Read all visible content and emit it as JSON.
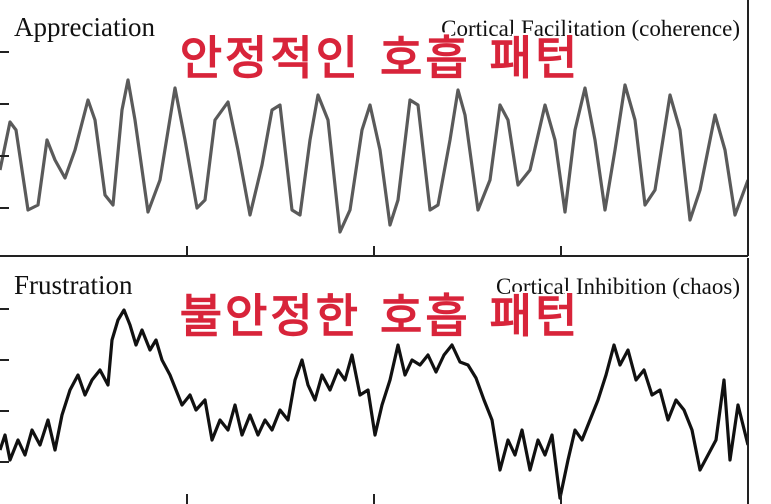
{
  "chart_data": [
    {
      "type": "line",
      "title": "Appreciation",
      "subtitle": "Cortical Facilitation (coherence)",
      "annotation": "안정적인 호흡 패턴",
      "color": "#5a5a5a",
      "xlim": [
        0,
        748
      ],
      "xticks": [
        187,
        374,
        561
      ],
      "ylim": [
        0,
        260
      ],
      "yticks": [
        52,
        104,
        156,
        208
      ],
      "x": [
        0,
        10,
        16,
        28,
        38,
        47,
        55,
        65,
        75,
        88,
        95,
        105,
        113,
        122,
        128,
        135,
        148,
        160,
        175,
        185,
        197,
        205,
        215,
        228,
        238,
        250,
        262,
        272,
        280,
        292,
        300,
        310,
        318,
        328,
        340,
        350,
        362,
        370,
        380,
        390,
        398,
        410,
        418,
        430,
        438,
        450,
        458,
        465,
        478,
        490,
        500,
        508,
        518,
        530,
        545,
        555,
        565,
        575,
        585,
        595,
        605,
        615,
        625,
        635,
        645,
        655,
        670,
        680,
        690,
        700,
        715,
        725,
        735,
        748
      ],
      "values": [
        90,
        138,
        130,
        50,
        55,
        120,
        100,
        82,
        110,
        160,
        140,
        65,
        55,
        150,
        180,
        140,
        48,
        80,
        172,
        120,
        52,
        60,
        140,
        158,
        110,
        45,
        95,
        150,
        155,
        50,
        45,
        120,
        165,
        140,
        28,
        50,
        130,
        155,
        110,
        35,
        60,
        160,
        155,
        50,
        55,
        120,
        170,
        145,
        50,
        80,
        155,
        140,
        75,
        90,
        155,
        120,
        48,
        130,
        172,
        120,
        50,
        110,
        175,
        140,
        55,
        70,
        165,
        130,
        40,
        70,
        145,
        110,
        45,
        80
      ]
    },
    {
      "type": "line",
      "title": "Frustration",
      "subtitle": "Cortical Inhibition (chaos)",
      "annotation": "불안정한 호흡 패턴",
      "color": "#111111",
      "xlim": [
        0,
        748
      ],
      "xticks": [
        187,
        374,
        561
      ],
      "ylim": [
        0,
        254
      ],
      "yticks": [
        51,
        102,
        153,
        204
      ],
      "x": [
        0,
        5,
        10,
        18,
        25,
        32,
        40,
        48,
        55,
        62,
        70,
        78,
        85,
        92,
        100,
        108,
        112,
        118,
        124,
        130,
        136,
        142,
        150,
        156,
        162,
        170,
        176,
        182,
        190,
        196,
        205,
        212,
        220,
        228,
        235,
        242,
        250,
        258,
        265,
        272,
        280,
        288,
        295,
        302,
        308,
        315,
        322,
        330,
        338,
        345,
        352,
        360,
        368,
        375,
        382,
        390,
        398,
        405,
        412,
        420,
        428,
        436,
        444,
        452,
        460,
        468,
        476,
        484,
        492,
        500,
        508,
        515,
        522,
        530,
        538,
        545,
        552,
        560,
        568,
        575,
        582,
        590,
        598,
        606,
        614,
        620,
        628,
        636,
        644,
        652,
        660,
        668,
        676,
        684,
        692,
        700,
        708,
        716,
        724,
        730,
        738,
        748
      ],
      "values": [
        63,
        78,
        53,
        73,
        58,
        83,
        68,
        93,
        63,
        98,
        123,
        138,
        118,
        133,
        143,
        128,
        173,
        193,
        203,
        188,
        168,
        183,
        163,
        173,
        153,
        138,
        123,
        108,
        118,
        103,
        113,
        73,
        93,
        83,
        108,
        78,
        98,
        78,
        93,
        83,
        103,
        93,
        133,
        153,
        128,
        113,
        138,
        123,
        143,
        133,
        158,
        118,
        123,
        78,
        108,
        133,
        168,
        138,
        153,
        148,
        158,
        141,
        158,
        168,
        151,
        148,
        135,
        113,
        93,
        43,
        73,
        58,
        83,
        43,
        73,
        58,
        78,
        15,
        53,
        83,
        73,
        93,
        113,
        138,
        168,
        148,
        163,
        133,
        143,
        118,
        123,
        93,
        113,
        103,
        83,
        43,
        58,
        73,
        133,
        53,
        108,
        68
      ]
    }
  ]
}
